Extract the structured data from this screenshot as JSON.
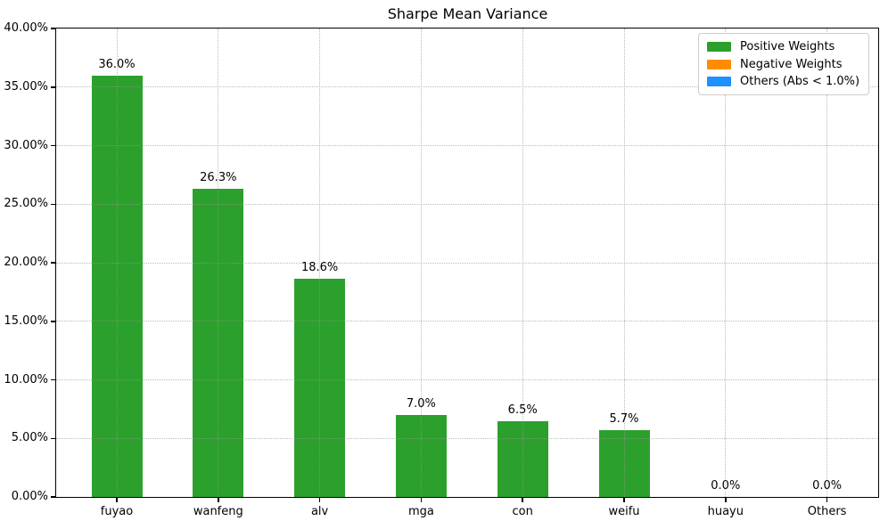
{
  "figure": {
    "title": "Sharpe Mean Variance"
  },
  "legend": {
    "items": [
      {
        "label": "Positive Weights",
        "color": "#2ca02c"
      },
      {
        "label": "Negative Weights",
        "color": "#ff8c00"
      },
      {
        "label": "Others (Abs < 1.0%)",
        "color": "#1e90ff"
      }
    ]
  },
  "chart_data": {
    "type": "bar",
    "title": "Sharpe Mean Variance",
    "categories": [
      "fuyao",
      "wanfeng",
      "alv",
      "mga",
      "con",
      "weifu",
      "huayu",
      "Others"
    ],
    "values": [
      36.0,
      26.3,
      18.6,
      7.0,
      6.5,
      5.7,
      0.0,
      0.0
    ],
    "bar_labels": [
      "36.0%",
      "26.3%",
      "18.6%",
      "7.0%",
      "6.5%",
      "5.7%",
      "0.0%",
      "0.0%"
    ],
    "bar_color": "#2ca02c",
    "xlabel": "",
    "ylabel": "",
    "ylim": [
      0,
      40
    ],
    "ytick_values": [
      0,
      5,
      10,
      15,
      20,
      25,
      30,
      35,
      40
    ],
    "ytick_labels": [
      "0.00%",
      "5.00%",
      "10.00%",
      "15.00%",
      "20.00%",
      "25.00%",
      "30.00%",
      "35.00%",
      "40.00%"
    ],
    "grid": true,
    "grid_style": "dotted",
    "legend_position": "upper right",
    "legend_entries": [
      "Positive Weights",
      "Negative Weights",
      "Others (Abs < 1.0%)"
    ]
  }
}
